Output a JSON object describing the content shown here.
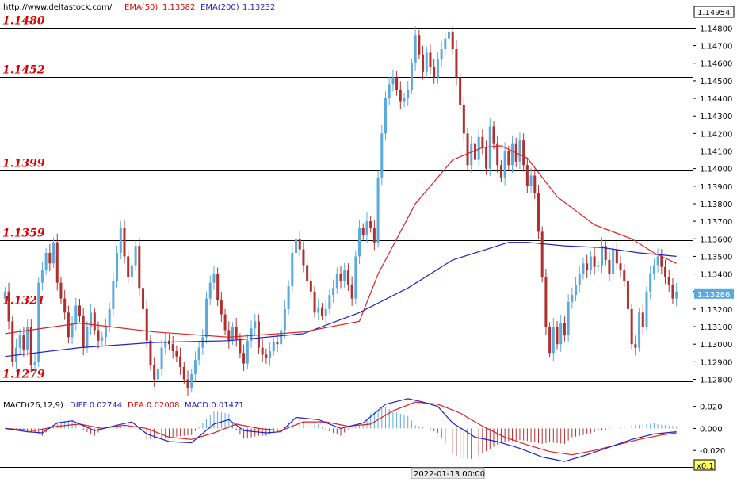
{
  "header": {
    "site": "http://www.deltastock.com/",
    "ema50_label": "EMA(50)",
    "ema50_value": "1.13582",
    "ema200_label": "EMA(200)",
    "ema200_value": "1.13232",
    "top_price_box": "1.14954"
  },
  "colors": {
    "up_candle": "#5aaadd",
    "down_candle": "#b03030",
    "ema50": "#e02020",
    "ema200": "#2020cc",
    "level_text": "#dd0000",
    "diff": "#2020cc",
    "dea": "#e02020"
  },
  "chart_data": [
    {
      "type": "candlestick",
      "price_axis": {
        "min": 1.1273,
        "max": 1.1496,
        "ticks": [
          "1.14800",
          "1.14700",
          "1.14600",
          "1.14500",
          "1.14400",
          "1.14300",
          "1.14200",
          "1.14100",
          "1.14000",
          "1.13900",
          "1.13800",
          "1.13700",
          "1.13600",
          "1.13500",
          "1.13400",
          "1.13300",
          "1.13200",
          "1.13100",
          "1.13000",
          "1.12900",
          "1.12800"
        ],
        "tick_values": [
          1.148,
          1.147,
          1.146,
          1.145,
          1.144,
          1.143,
          1.142,
          1.141,
          1.14,
          1.139,
          1.138,
          1.137,
          1.136,
          1.135,
          1.134,
          1.133,
          1.132,
          1.131,
          1.13,
          1.129,
          1.128
        ]
      },
      "current_price": "1.13286",
      "levels": [
        {
          "label": "1.1480",
          "value": 1.148
        },
        {
          "label": "1.1452",
          "value": 1.1452
        },
        {
          "label": "1.1399",
          "value": 1.1399
        },
        {
          "label": "1.1359",
          "value": 1.1359
        },
        {
          "label": "1.1321",
          "value": 1.1321
        },
        {
          "label": "1.1279",
          "value": 1.1279
        }
      ],
      "closes": [
        1.133,
        1.1313,
        1.129,
        1.1298,
        1.1305,
        1.1297,
        1.131,
        1.1288,
        1.129,
        1.1335,
        1.1342,
        1.1352,
        1.1346,
        1.1358,
        1.1335,
        1.1326,
        1.1318,
        1.1304,
        1.1312,
        1.1322,
        1.1316,
        1.1298,
        1.131,
        1.1318,
        1.1308,
        1.1302,
        1.1304,
        1.131,
        1.132,
        1.1336,
        1.1352,
        1.1366,
        1.135,
        1.1338,
        1.1345,
        1.1356,
        1.1332,
        1.132,
        1.1302,
        1.1288,
        1.128,
        1.1286,
        1.1298,
        1.1302,
        1.13,
        1.1296,
        1.1293,
        1.1287,
        1.128,
        1.1275,
        1.1283,
        1.1291,
        1.1298,
        1.1304,
        1.1326,
        1.1335,
        1.134,
        1.1325,
        1.1317,
        1.1308,
        1.1302,
        1.131,
        1.1303,
        1.1295,
        1.1289,
        1.1302,
        1.1309,
        1.1313,
        1.1298,
        1.1294,
        1.1292,
        1.1296,
        1.1301,
        1.13,
        1.1308,
        1.132,
        1.1333,
        1.1352,
        1.136,
        1.1354,
        1.1345,
        1.1336,
        1.133,
        1.1318,
        1.1321,
        1.1316,
        1.132,
        1.1328,
        1.1332,
        1.134,
        1.1336,
        1.1342,
        1.1334,
        1.1326,
        1.135,
        1.1366,
        1.1362,
        1.137,
        1.1366,
        1.1358,
        1.1395,
        1.142,
        1.144,
        1.1448,
        1.1452,
        1.1445,
        1.1438,
        1.144,
        1.1445,
        1.146,
        1.1476,
        1.1465,
        1.1455,
        1.1466,
        1.1458,
        1.1452,
        1.1462,
        1.1468,
        1.1474,
        1.1478,
        1.1468,
        1.1452,
        1.1436,
        1.142,
        1.1402,
        1.1414,
        1.1405,
        1.1418,
        1.1412,
        1.14,
        1.1424,
        1.1414,
        1.1402,
        1.1395,
        1.141,
        1.1402,
        1.1414,
        1.1404,
        1.1416,
        1.1402,
        1.139,
        1.1396,
        1.1386,
        1.1364,
        1.1338,
        1.131,
        1.1295,
        1.131,
        1.13,
        1.1312,
        1.1305,
        1.1324,
        1.1328,
        1.1334,
        1.134,
        1.1346,
        1.1342,
        1.135,
        1.1344,
        1.1345,
        1.1356,
        1.1348,
        1.134,
        1.1354,
        1.1346,
        1.1342,
        1.1336,
        1.132,
        1.13,
        1.1298,
        1.1318,
        1.131,
        1.133,
        1.134,
        1.1345,
        1.135,
        1.1344,
        1.1338,
        1.1334,
        1.1326,
        1.133
      ],
      "ema50": [
        [
          0,
          1.1306
        ],
        [
          20,
          1.1312
        ],
        [
          40,
          1.1307
        ],
        [
          60,
          1.1304
        ],
        [
          80,
          1.1307
        ],
        [
          95,
          1.1313
        ],
        [
          100,
          1.134
        ],
        [
          110,
          1.138
        ],
        [
          120,
          1.1405
        ],
        [
          128,
          1.1412
        ],
        [
          133,
          1.1413
        ],
        [
          140,
          1.1406
        ],
        [
          148,
          1.1384
        ],
        [
          158,
          1.1368
        ],
        [
          168,
          1.136
        ],
        [
          174,
          1.1352
        ],
        [
          180,
          1.1346
        ]
      ],
      "ema200": [
        [
          0,
          1.1293
        ],
        [
          20,
          1.1298
        ],
        [
          40,
          1.1301
        ],
        [
          60,
          1.1302
        ],
        [
          80,
          1.1306
        ],
        [
          95,
          1.1318
        ],
        [
          108,
          1.1332
        ],
        [
          120,
          1.1348
        ],
        [
          135,
          1.1358
        ],
        [
          140,
          1.1358
        ],
        [
          150,
          1.1356
        ],
        [
          160,
          1.1355
        ],
        [
          170,
          1.1352
        ],
        [
          180,
          1.135
        ]
      ]
    },
    {
      "type": "line",
      "title": "MACD(26,12,9)",
      "legend": {
        "diff": "DIFF:0.02744",
        "dea": "DEA:0.02008",
        "macd": "MACD:0.01471"
      },
      "y_axis": {
        "min": -0.035,
        "max": 0.032,
        "ticks": [
          "0.020",
          "0.000",
          "-0.020"
        ],
        "tick_values": [
          0.02,
          0.0,
          -0.02
        ]
      },
      "scale_badge": "x0.1",
      "x_label": "2022-01-13 00:00",
      "diff": [
        [
          0,
          0.0
        ],
        [
          6,
          -0.003
        ],
        [
          10,
          -0.004
        ],
        [
          14,
          0.005
        ],
        [
          18,
          0.007
        ],
        [
          24,
          -0.002
        ],
        [
          30,
          0.003
        ],
        [
          34,
          0.006
        ],
        [
          38,
          -0.005
        ],
        [
          44,
          -0.012
        ],
        [
          50,
          -0.013
        ],
        [
          56,
          0.004
        ],
        [
          60,
          0.008
        ],
        [
          64,
          -0.002
        ],
        [
          70,
          -0.004
        ],
        [
          74,
          -0.003
        ],
        [
          78,
          0.01
        ],
        [
          84,
          0.008
        ],
        [
          90,
          0.0
        ],
        [
          96,
          0.005
        ],
        [
          102,
          0.022
        ],
        [
          108,
          0.027
        ],
        [
          112,
          0.024
        ],
        [
          116,
          0.02
        ],
        [
          120,
          0.005
        ],
        [
          126,
          -0.008
        ],
        [
          132,
          -0.012
        ],
        [
          138,
          -0.018
        ],
        [
          144,
          -0.026
        ],
        [
          150,
          -0.03
        ],
        [
          156,
          -0.024
        ],
        [
          162,
          -0.017
        ],
        [
          168,
          -0.01
        ],
        [
          174,
          -0.005
        ],
        [
          180,
          -0.003
        ]
      ],
      "dea": [
        [
          0,
          0.0
        ],
        [
          8,
          -0.002
        ],
        [
          14,
          0.002
        ],
        [
          20,
          0.004
        ],
        [
          26,
          0.0
        ],
        [
          32,
          0.003
        ],
        [
          38,
          0.0
        ],
        [
          44,
          -0.008
        ],
        [
          50,
          -0.01
        ],
        [
          56,
          -0.004
        ],
        [
          62,
          0.004
        ],
        [
          68,
          0.0
        ],
        [
          74,
          -0.002
        ],
        [
          80,
          0.006
        ],
        [
          86,
          0.006
        ],
        [
          92,
          0.002
        ],
        [
          98,
          0.004
        ],
        [
          104,
          0.016
        ],
        [
          110,
          0.024
        ],
        [
          116,
          0.022
        ],
        [
          122,
          0.014
        ],
        [
          128,
          0.002
        ],
        [
          134,
          -0.008
        ],
        [
          140,
          -0.015
        ],
        [
          146,
          -0.021
        ],
        [
          152,
          -0.024
        ],
        [
          158,
          -0.02
        ],
        [
          164,
          -0.015
        ],
        [
          170,
          -0.01
        ],
        [
          176,
          -0.006
        ],
        [
          180,
          -0.004
        ]
      ]
    }
  ]
}
